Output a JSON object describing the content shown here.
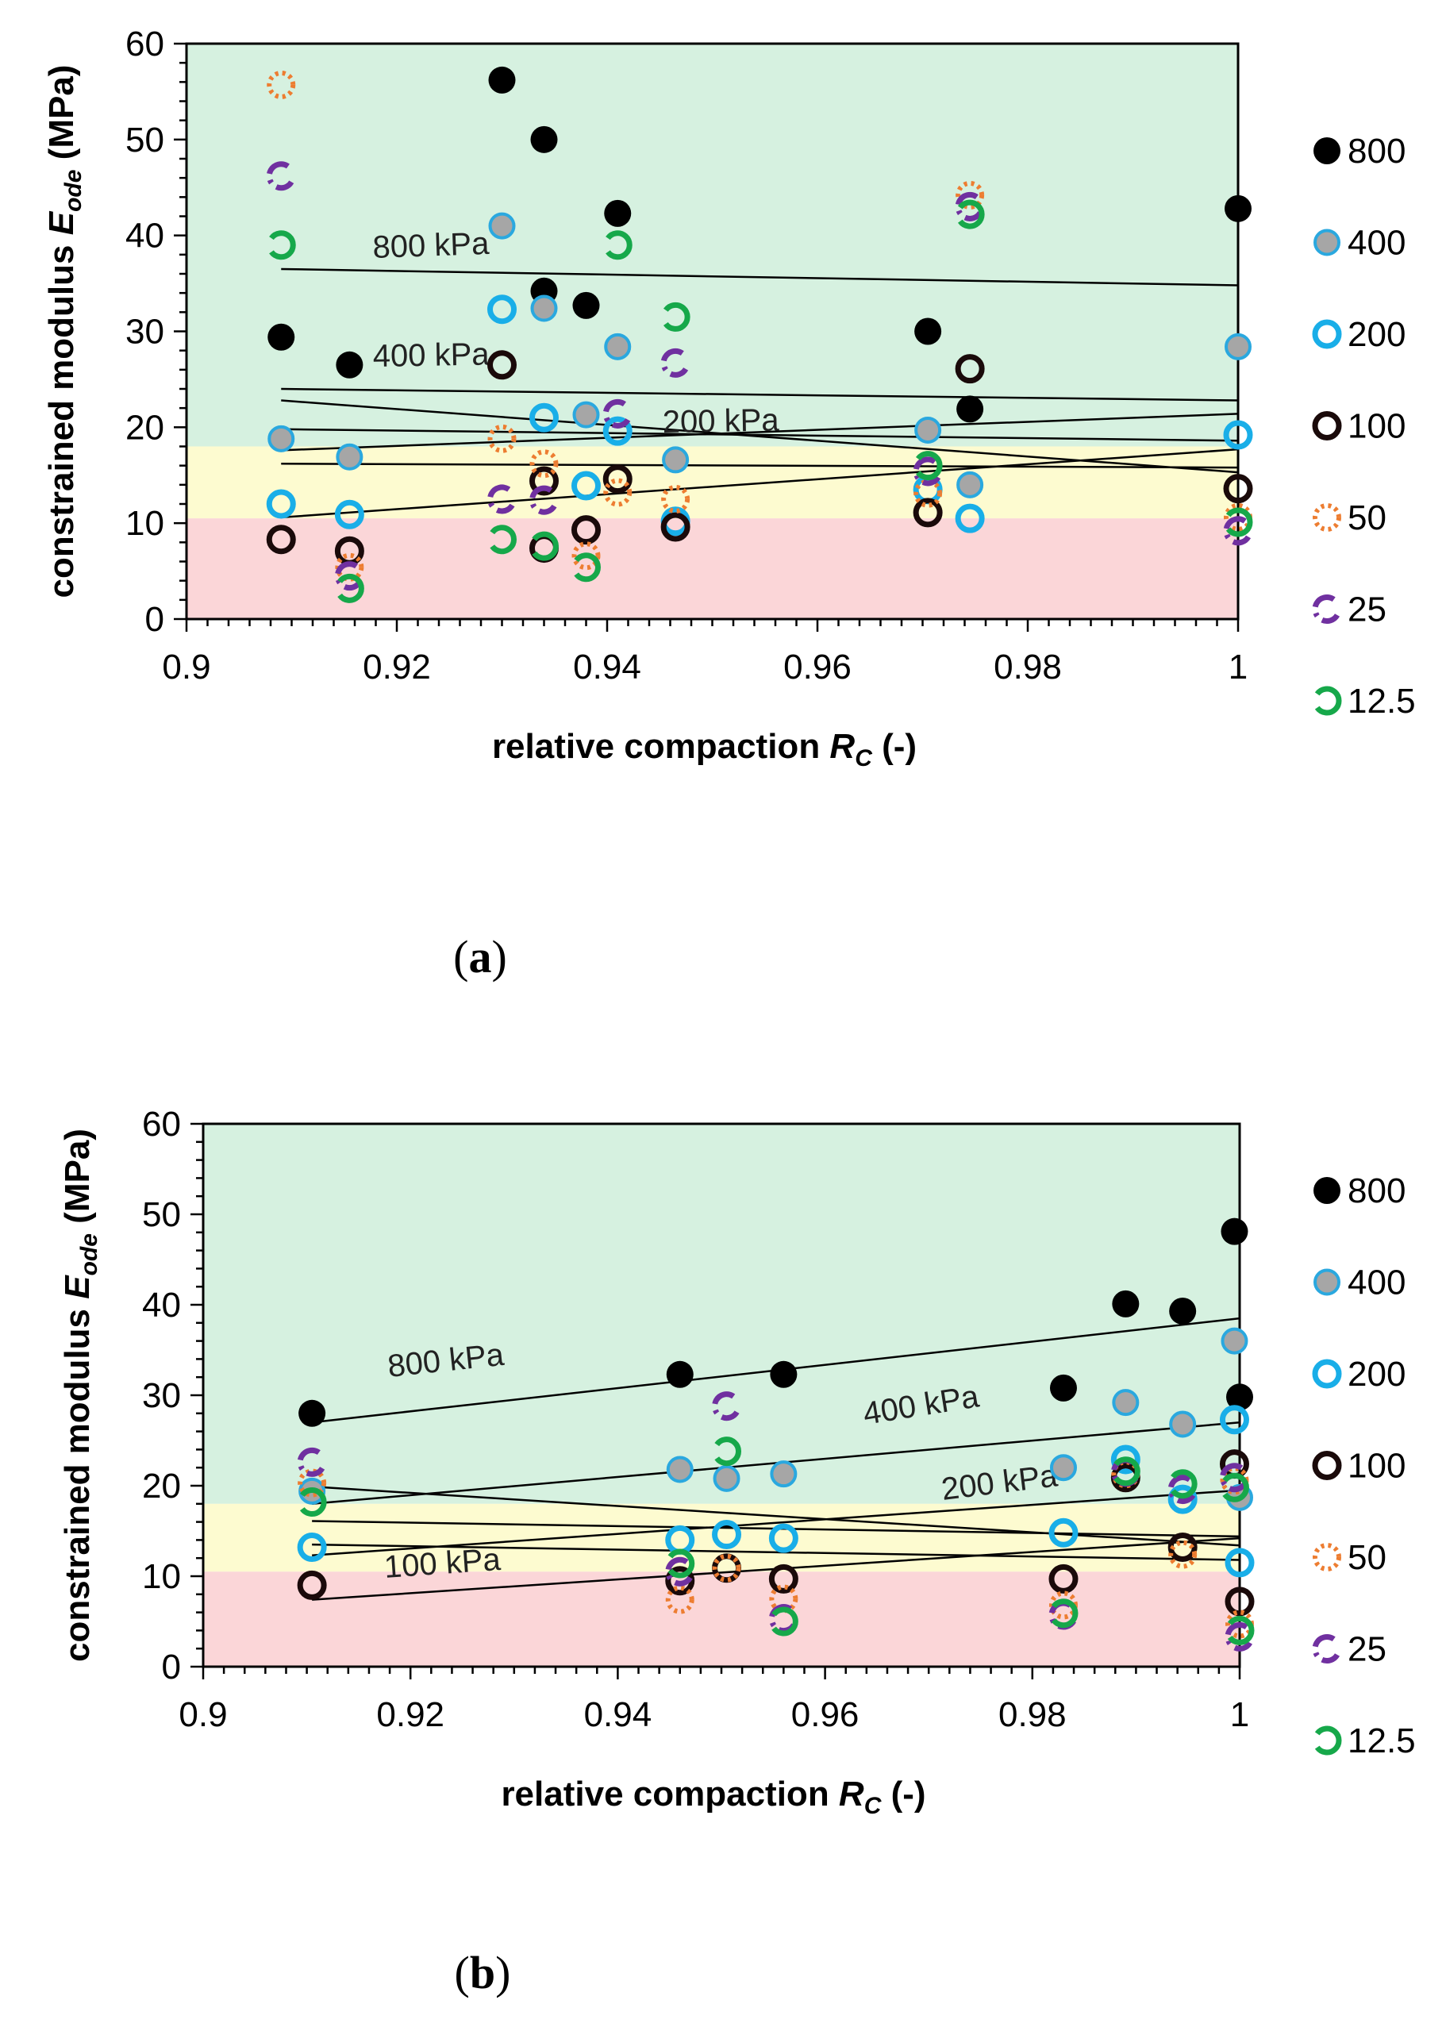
{
  "colors": {
    "zone_green": "#d6f1e0",
    "zone_yellow": "#fdfbd0",
    "zone_red": "#fbd6d8",
    "s800": "#000000",
    "s400_fill": "#a6a6a6",
    "s400_edge": "#2aa8df",
    "s200": "#19aee8",
    "s100": "#1a0a0a",
    "s50": "#ed7d31",
    "s25": "#7030a0",
    "s12_5": "#16a84a"
  },
  "legend": [
    {
      "key": "800",
      "label": "800",
      "marker": "filled-black-dot"
    },
    {
      "key": "400",
      "label": "400",
      "marker": "grey-dot-blue-edge"
    },
    {
      "key": "200",
      "label": "200",
      "marker": "blue-ring"
    },
    {
      "key": "100",
      "label": "100",
      "marker": "black-ring"
    },
    {
      "key": "50",
      "label": "50",
      "marker": "orange-dotted-ring"
    },
    {
      "key": "25",
      "label": "25",
      "marker": "purple-dashed-ring"
    },
    {
      "key": "12.5",
      "label": "12.5",
      "marker": "green-open-arc"
    }
  ],
  "chart_data": [
    {
      "type": "scatter",
      "panel_label": "(a)",
      "xlabel": "relative compaction",
      "xlabel_symbol": "R",
      "xlabel_sub": "C",
      "xlabel_suffix": " (-)",
      "ylabel": "constrained modulus",
      "ylabel_symbol": "E",
      "ylabel_sub": "ode",
      "ylabel_suffix": " (MPa)",
      "xlim": [
        0.9,
        1.0
      ],
      "ylim": [
        0,
        60
      ],
      "x_ticks": [
        "0.9",
        "0.92",
        "0.94",
        "0.96",
        "0.98",
        "1"
      ],
      "y_ticks": [
        "0",
        "10",
        "20",
        "30",
        "40",
        "50",
        "60"
      ],
      "zones": [
        {
          "color": "green",
          "y": [
            18,
            60
          ]
        },
        {
          "color": "yellow",
          "y": [
            10.5,
            18
          ]
        },
        {
          "color": "red",
          "y": [
            0,
            10.5
          ]
        }
      ],
      "series": [
        {
          "key": "800",
          "points": [
            [
              0.909,
              29.4
            ],
            [
              0.9155,
              26.5
            ],
            [
              0.93,
              56.2
            ],
            [
              0.934,
              50
            ],
            [
              0.934,
              34.2
            ],
            [
              0.938,
              32.7
            ],
            [
              0.941,
              42.3
            ],
            [
              0.9705,
              30
            ],
            [
              0.9745,
              21.9
            ],
            [
              1.0,
              42.8
            ]
          ]
        },
        {
          "key": "400",
          "points": [
            [
              0.909,
              18.8
            ],
            [
              0.9155,
              16.9
            ],
            [
              0.93,
              41
            ],
            [
              0.934,
              32.4
            ],
            [
              0.938,
              21.3
            ],
            [
              0.941,
              28.4
            ],
            [
              0.9465,
              16.6
            ],
            [
              0.9705,
              19.7
            ],
            [
              0.9745,
              14
            ],
            [
              1.0,
              28.4
            ]
          ]
        },
        {
          "key": "200",
          "points": [
            [
              0.909,
              12
            ],
            [
              0.9155,
              10.9
            ],
            [
              0.93,
              32.3
            ],
            [
              0.934,
              21
            ],
            [
              0.938,
              13.9
            ],
            [
              0.941,
              19.6
            ],
            [
              0.9465,
              10.2
            ],
            [
              0.9705,
              13.5
            ],
            [
              0.9745,
              10.5
            ],
            [
              1.0,
              19.2
            ]
          ]
        },
        {
          "key": "100",
          "points": [
            [
              0.909,
              8.3
            ],
            [
              0.9155,
              7.1
            ],
            [
              0.93,
              26.5
            ],
            [
              0.934,
              14.4
            ],
            [
              0.934,
              7.4
            ],
            [
              0.938,
              9.3
            ],
            [
              0.941,
              14.6
            ],
            [
              0.9465,
              9.6
            ],
            [
              0.9705,
              11.1
            ],
            [
              0.9745,
              26.1
            ],
            [
              1.0,
              13.6
            ]
          ]
        },
        {
          "key": "50",
          "points": [
            [
              0.909,
              55.7
            ],
            [
              0.9155,
              5.4
            ],
            [
              0.93,
              18.8
            ],
            [
              0.934,
              16.2
            ],
            [
              0.938,
              6.6
            ],
            [
              0.941,
              13.2
            ],
            [
              0.9465,
              12.5
            ],
            [
              0.9705,
              13.1
            ],
            [
              0.9745,
              44.2
            ],
            [
              1.0,
              10.6
            ]
          ]
        },
        {
          "key": "25",
          "points": [
            [
              0.909,
              46.2
            ],
            [
              0.9155,
              4.5
            ],
            [
              0.93,
              12.5
            ],
            [
              0.934,
              12.4
            ],
            [
              0.941,
              21.4
            ],
            [
              0.9465,
              26.7
            ],
            [
              0.9705,
              15.4
            ],
            [
              0.9745,
              43
            ],
            [
              1.0,
              9.2
            ]
          ]
        },
        {
          "key": "12.5",
          "points": [
            [
              0.909,
              39
            ],
            [
              0.9155,
              3.2
            ],
            [
              0.93,
              8.3
            ],
            [
              0.934,
              7.6
            ],
            [
              0.938,
              5.4
            ],
            [
              0.941,
              39
            ],
            [
              0.9465,
              31.5
            ],
            [
              0.9705,
              16
            ],
            [
              0.9745,
              42.2
            ],
            [
              1.0,
              10.1
            ]
          ]
        }
      ],
      "trendlines": [
        {
          "label": "800 kPa",
          "from": [
            0.909,
            36.5
          ],
          "to": [
            1.0,
            34.8
          ]
        },
        {
          "label": "400 kPa",
          "from": [
            0.909,
            24.0
          ],
          "to": [
            1.0,
            22.8
          ]
        },
        {
          "label": "200 kPa",
          "from": [
            0.909,
            22.8
          ],
          "to": [
            1.0,
            15.3
          ]
        },
        {
          "label": "",
          "from": [
            0.909,
            19.8
          ],
          "to": [
            1.0,
            18.6
          ]
        },
        {
          "label": "",
          "from": [
            0.909,
            17.6
          ],
          "to": [
            1.0,
            21.4
          ]
        },
        {
          "label": "",
          "from": [
            0.909,
            16.2
          ],
          "to": [
            1.0,
            15.8
          ]
        },
        {
          "label": "",
          "from": [
            0.909,
            10.6
          ],
          "to": [
            1.0,
            17.7
          ]
        }
      ]
    },
    {
      "type": "scatter",
      "panel_label": "(b)",
      "xlabel": "relative compaction",
      "xlabel_symbol": "R",
      "xlabel_sub": "C",
      "xlabel_suffix": " (-)",
      "ylabel": "constrained modulus",
      "ylabel_symbol": "E",
      "ylabel_sub": "ode",
      "ylabel_suffix": " (MPa)",
      "xlim": [
        0.9,
        1.0
      ],
      "ylim": [
        0,
        60
      ],
      "x_ticks": [
        "0.9",
        "0.92",
        "0.94",
        "0.96",
        "0.98",
        "1"
      ],
      "y_ticks": [
        "0",
        "10",
        "20",
        "30",
        "40",
        "50",
        "60"
      ],
      "zones": [
        {
          "color": "green",
          "y": [
            18,
            60
          ]
        },
        {
          "color": "yellow",
          "y": [
            10.5,
            18
          ]
        },
        {
          "color": "red",
          "y": [
            0,
            10.5
          ]
        }
      ],
      "series": [
        {
          "key": "800",
          "points": [
            [
              0.9105,
              28
            ],
            [
              0.946,
              32.3
            ],
            [
              0.956,
              32.3
            ],
            [
              0.983,
              30.8
            ],
            [
              0.989,
              40.1
            ],
            [
              0.9945,
              39.3
            ],
            [
              0.9995,
              48.1
            ],
            [
              1.0,
              29.8
            ]
          ]
        },
        {
          "key": "400",
          "points": [
            [
              0.9105,
              19.4
            ],
            [
              0.946,
              21.8
            ],
            [
              0.9505,
              20.8
            ],
            [
              0.956,
              21.3
            ],
            [
              0.983,
              22
            ],
            [
              0.989,
              29.2
            ],
            [
              0.9945,
              26.8
            ],
            [
              0.9995,
              36
            ],
            [
              1.0,
              18.7
            ]
          ]
        },
        {
          "key": "200",
          "points": [
            [
              0.9105,
              13.2
            ],
            [
              0.946,
              14
            ],
            [
              0.9505,
              14.6
            ],
            [
              0.956,
              14.2
            ],
            [
              0.983,
              14.8
            ],
            [
              0.989,
              22.9
            ],
            [
              0.9945,
              18.5
            ],
            [
              0.9995,
              27.3
            ],
            [
              1.0,
              11.5
            ]
          ]
        },
        {
          "key": "100",
          "points": [
            [
              0.9105,
              9
            ],
            [
              0.946,
              9.5
            ],
            [
              0.9505,
              10.9
            ],
            [
              0.956,
              9.7
            ],
            [
              0.983,
              9.7
            ],
            [
              0.989,
              20.9
            ],
            [
              0.9945,
              13.2
            ],
            [
              0.9995,
              22.4
            ],
            [
              1.0,
              7.2
            ]
          ]
        },
        {
          "key": "50",
          "points": [
            [
              0.9105,
              20.3
            ],
            [
              0.946,
              7.4
            ],
            [
              0.9505,
              10.9
            ],
            [
              0.956,
              7.5
            ],
            [
              0.983,
              6.8
            ],
            [
              0.989,
              21.3
            ],
            [
              0.9945,
              12.4
            ],
            [
              0.9995,
              20.6
            ],
            [
              1.0,
              4.7
            ]
          ]
        },
        {
          "key": "25",
          "points": [
            [
              0.9105,
              22.6
            ],
            [
              0.946,
              10.5
            ],
            [
              0.9505,
              28.8
            ],
            [
              0.956,
              5.3
            ],
            [
              0.983,
              5.7
            ],
            [
              0.989,
              21.5
            ],
            [
              0.9945,
              19.6
            ],
            [
              0.9995,
              20.9
            ],
            [
              1.0,
              3.3
            ]
          ]
        },
        {
          "key": "12.5",
          "points": [
            [
              0.9105,
              18.2
            ],
            [
              0.946,
              11.4
            ],
            [
              0.9505,
              23.8
            ],
            [
              0.956,
              5
            ],
            [
              0.983,
              5.9
            ],
            [
              0.989,
              21.6
            ],
            [
              0.9945,
              20.2
            ],
            [
              0.9995,
              19.8
            ],
            [
              1.0,
              4
            ]
          ]
        }
      ],
      "trendlines": [
        {
          "label": "800 kPa",
          "from": [
            0.9105,
            27.0
          ],
          "to": [
            1.0,
            38.5
          ]
        },
        {
          "label": "400 kPa",
          "from": [
            0.9105,
            18.0
          ],
          "to": [
            1.0,
            27.0
          ]
        },
        {
          "label": "200 kPa",
          "from": [
            0.9105,
            12.3
          ],
          "to": [
            1.0,
            19.5
          ]
        },
        {
          "label": "100 kPa",
          "from": [
            0.9105,
            7.4
          ],
          "to": [
            1.0,
            14.2
          ]
        },
        {
          "label": "",
          "from": [
            0.9105,
            19.9
          ],
          "to": [
            1.0,
            13.4
          ]
        },
        {
          "label": "",
          "from": [
            0.9105,
            16.1
          ],
          "to": [
            1.0,
            14.4
          ]
        },
        {
          "label": "",
          "from": [
            0.9105,
            13.5
          ],
          "to": [
            1.0,
            11.8
          ]
        }
      ]
    }
  ]
}
